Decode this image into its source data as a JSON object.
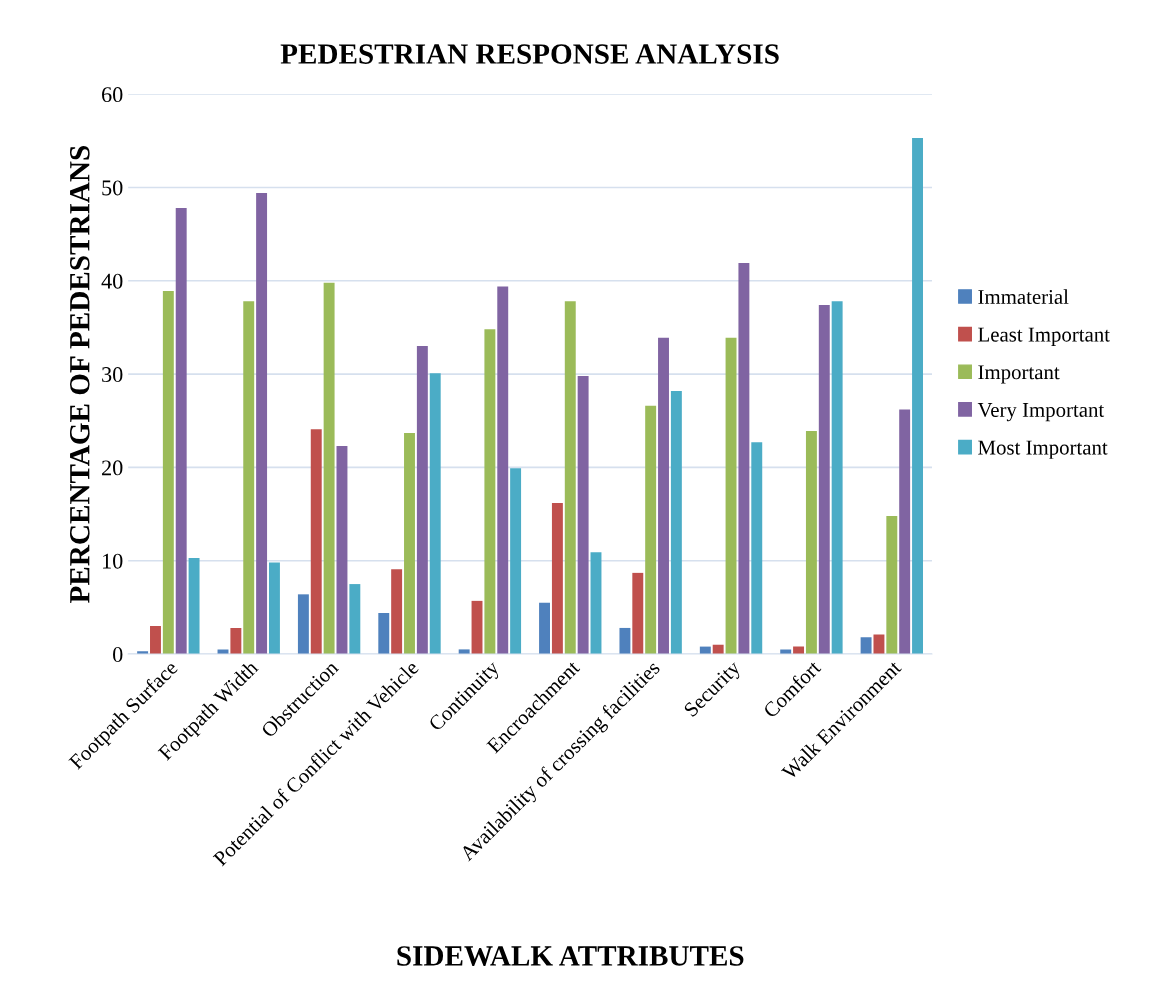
{
  "chart_data": {
    "type": "bar",
    "title": "PEDESTRIAN RESPONSE ANALYSIS",
    "xlabel": "SIDEWALK ATTRIBUTES",
    "ylabel": "PERCENTAGE OF PEDESTRIANS",
    "categories": [
      "Footpath Surface",
      "Footpath Width",
      "Obstruction",
      "Potential of Conflict with Vehicle",
      "Continuity",
      "Encroachment",
      "Availability of crossing facilities",
      "Security",
      "Comfort",
      "Walk Environment"
    ],
    "series": [
      {
        "name": "Immaterial",
        "color": "#4f81bd",
        "values": [
          0.3,
          0.5,
          6.4,
          4.4,
          0.5,
          5.5,
          2.8,
          0.8,
          0.5,
          1.8
        ]
      },
      {
        "name": "Least Important",
        "color": "#c0504d",
        "values": [
          3.0,
          2.8,
          24.1,
          9.1,
          5.7,
          16.2,
          8.7,
          1.0,
          0.8,
          2.1
        ]
      },
      {
        "name": "Important",
        "color": "#9bbb59",
        "values": [
          38.9,
          37.8,
          39.8,
          23.7,
          34.8,
          37.8,
          26.6,
          33.9,
          23.9,
          14.8
        ]
      },
      {
        "name": "Very Important",
        "color": "#8064a2",
        "values": [
          47.8,
          49.4,
          22.3,
          33.0,
          39.4,
          29.8,
          33.9,
          41.9,
          37.4,
          26.2
        ]
      },
      {
        "name": "Most Important",
        "color": "#4bacc6",
        "values": [
          10.3,
          9.8,
          7.5,
          30.1,
          19.9,
          10.9,
          28.2,
          22.7,
          37.8,
          55.3
        ]
      }
    ],
    "ylim": [
      0,
      60
    ],
    "yticks": [
      0,
      10,
      20,
      30,
      40,
      50,
      60
    ],
    "grid": "y",
    "legend": "right"
  }
}
